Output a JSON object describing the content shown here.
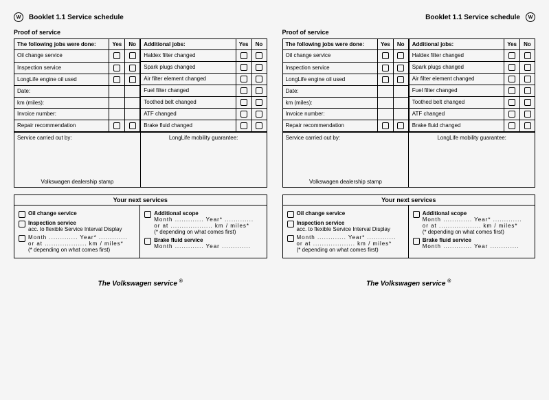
{
  "header": {
    "booklet": "Booklet 1.1  Service schedule",
    "logo_text": "W"
  },
  "proof": {
    "title": "Proof of service",
    "left_head": "The following jobs were done:",
    "right_head": "Additional jobs:",
    "yes": "Yes",
    "no": "No",
    "left_rows": [
      "Oil change service",
      "Inspection service",
      "LongLife engine oil used",
      "Date:",
      "km (miles):",
      "Invoice number:",
      "Repair recommendation"
    ],
    "left_has_checks": [
      true,
      true,
      true,
      false,
      false,
      false,
      true
    ],
    "right_rows": [
      "Haldex filter changed",
      "Spark plugs changed",
      "Air filter element changed",
      "Fuel filter changed",
      "Toothed belt changed",
      "ATF changed",
      "Brake fluid changed"
    ],
    "carried_out": "Service carried out by:",
    "stamp": "Volkswagen dealership stamp",
    "guarantee": "LongLife mobility guarantee:"
  },
  "next": {
    "header": "Your next services",
    "oil": "Oil change service",
    "insp": "Inspection service",
    "acc": "acc. to flexible Service Interval Display",
    "month_year": "Month ............. Year* .............",
    "orat": "or at ................... km / miles*",
    "depend": "(* depending on what comes first)",
    "scope": "Additional scope",
    "my2": "Month ............. Year* .............",
    "brake": "Brake fluid service",
    "my3": "Month ............. Year .............",
    "month_year2": "Month ............. Year* .............",
    "orat2": "or at ................... km / miles*",
    "depend2": "(* depending on what comes first)"
  },
  "footer": {
    "txt": "The Volkswagen service",
    "mark": "®"
  }
}
